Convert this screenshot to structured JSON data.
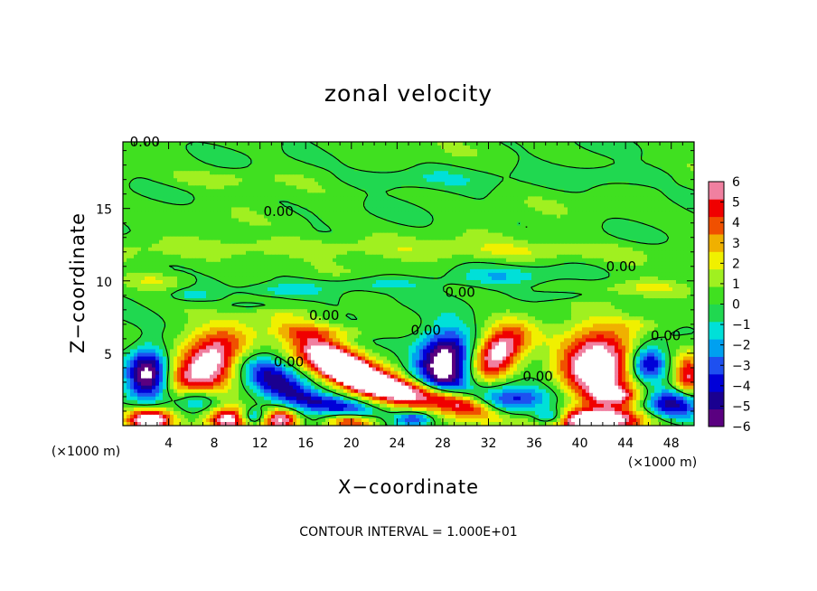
{
  "chart_data": {
    "type": "heatmap",
    "title": "zonal velocity",
    "xlabel": "X−coordinate",
    "ylabel": "Z−coordinate",
    "x_unit_left": "(×1000 m)",
    "x_unit_right": "(×1000 m)",
    "footer": "CONTOUR INTERVAL = 1.000E+01",
    "xlim": [
      0,
      50
    ],
    "ylim": [
      0,
      19.6
    ],
    "x_ticks": [
      4,
      8,
      12,
      16,
      20,
      24,
      28,
      32,
      36,
      40,
      44,
      48
    ],
    "x_tick_labels": [
      "4",
      "8",
      "12",
      "16",
      "20",
      "24",
      "28",
      "32",
      "36",
      "40",
      "44",
      "48"
    ],
    "y_ticks": [
      5,
      10,
      15
    ],
    "y_tick_labels": [
      "5",
      "10",
      "15"
    ],
    "colorbar": {
      "min": -6,
      "max": 6,
      "tick_values": [
        6,
        5,
        4,
        3,
        2,
        1,
        0,
        -1,
        -2,
        -3,
        -4,
        -5,
        -6
      ],
      "tick_labels": [
        "6",
        "5",
        "4",
        "3",
        "2",
        "1",
        "0",
        "−1",
        "−2",
        "−3",
        "−4",
        "−5",
        "−6"
      ],
      "colors": [
        "#5a0080",
        "#1a0090",
        "#0000d8",
        "#1e50f0",
        "#00a0f0",
        "#00e0d8",
        "#20d850",
        "#40e020",
        "#a0f020",
        "#f0f000",
        "#f0b000",
        "#f05000",
        "#f00000",
        "#f080a0"
      ]
    },
    "contour_label": "0.00",
    "contour_labels": [
      {
        "x": 0.6,
        "y": 19.6
      },
      {
        "x": 12.3,
        "y": 14.8
      },
      {
        "x": 42.3,
        "y": 11.0
      },
      {
        "x": 28.2,
        "y": 9.2
      },
      {
        "x": 16.3,
        "y": 7.6
      },
      {
        "x": 25.2,
        "y": 6.6
      },
      {
        "x": 46.2,
        "y": 6.2
      },
      {
        "x": 13.2,
        "y": 4.4
      },
      {
        "x": 35.0,
        "y": 3.4
      }
    ],
    "features": [
      {
        "kind": "pos",
        "x": 7.5,
        "y": 4.2,
        "rx": 3.6,
        "ry": 2.0,
        "amp": 7.5,
        "rot": 25
      },
      {
        "kind": "pos",
        "x": 18.5,
        "y": 4.5,
        "rx": 4.5,
        "ry": 1.3,
        "amp": 7.0,
        "rot": -25
      },
      {
        "kind": "pos",
        "x": 22.5,
        "y": 2.8,
        "rx": 5.5,
        "ry": 0.9,
        "amp": 7.0,
        "rot": -15
      },
      {
        "kind": "pos",
        "x": 29.0,
        "y": 1.7,
        "rx": 4.0,
        "ry": 0.8,
        "amp": 5.5,
        "rot": -15
      },
      {
        "kind": "pos",
        "x": 32.8,
        "y": 5.0,
        "rx": 2.6,
        "ry": 1.5,
        "amp": 7.0,
        "rot": 25
      },
      {
        "kind": "pos",
        "x": 41.5,
        "y": 4.3,
        "rx": 3.2,
        "ry": 2.3,
        "amp": 8.0,
        "rot": 0
      },
      {
        "kind": "pos",
        "x": 43.0,
        "y": 2.0,
        "rx": 2.5,
        "ry": 0.7,
        "amp": 4.0,
        "rot": 0
      },
      {
        "kind": "pos",
        "x": 2.3,
        "y": 0.4,
        "rx": 2.0,
        "ry": 0.8,
        "amp": 7.0,
        "rot": 0
      },
      {
        "kind": "pos",
        "x": 9.2,
        "y": 0.4,
        "rx": 1.8,
        "ry": 0.8,
        "amp": 6.0,
        "rot": 0
      },
      {
        "kind": "pos",
        "x": 13.8,
        "y": 0.4,
        "rx": 1.8,
        "ry": 0.8,
        "amp": 6.5,
        "rot": 0
      },
      {
        "kind": "pos",
        "x": 20.0,
        "y": 0.3,
        "rx": 2.5,
        "ry": 0.6,
        "amp": 5.0,
        "rot": 0
      },
      {
        "kind": "pos",
        "x": 41.5,
        "y": 0.4,
        "rx": 4.0,
        "ry": 0.8,
        "amp": 8.0,
        "rot": 0
      },
      {
        "kind": "pos",
        "x": 49.5,
        "y": 3.5,
        "rx": 1.2,
        "ry": 1.5,
        "amp": 4.5,
        "rot": 0
      },
      {
        "kind": "neg",
        "x": 2.2,
        "y": 3.6,
        "rx": 1.8,
        "ry": 1.8,
        "amp": -7.0,
        "rot": 0
      },
      {
        "kind": "neg",
        "x": 13.5,
        "y": 3.0,
        "rx": 4.0,
        "ry": 1.3,
        "amp": -5.5,
        "rot": -25
      },
      {
        "kind": "neg",
        "x": 19.0,
        "y": 1.3,
        "rx": 3.5,
        "ry": 0.7,
        "amp": -4.5,
        "rot": -10
      },
      {
        "kind": "neg",
        "x": 28.2,
        "y": 4.3,
        "rx": 2.5,
        "ry": 2.2,
        "amp": -8.0,
        "rot": 20
      },
      {
        "kind": "neg",
        "x": 34.5,
        "y": 1.8,
        "rx": 3.0,
        "ry": 1.0,
        "amp": -4.0,
        "rot": 0
      },
      {
        "kind": "neg",
        "x": 46.0,
        "y": 4.3,
        "rx": 1.6,
        "ry": 1.3,
        "amp": -5.5,
        "rot": 0
      },
      {
        "kind": "neg",
        "x": 48.0,
        "y": 1.5,
        "rx": 2.5,
        "ry": 1.0,
        "amp": -5.0,
        "rot": 0
      },
      {
        "kind": "neg",
        "x": 6.5,
        "y": 1.8,
        "rx": 2.0,
        "ry": 0.9,
        "amp": -4.0,
        "rot": 0
      },
      {
        "kind": "neg",
        "x": 11.5,
        "y": 0.6,
        "rx": 1.2,
        "ry": 0.6,
        "amp": -4.0,
        "rot": 0
      },
      {
        "kind": "neg",
        "x": 37.5,
        "y": 0.6,
        "rx": 1.5,
        "ry": 0.6,
        "amp": -4.5,
        "rot": 0
      },
      {
        "kind": "neg",
        "x": 25.5,
        "y": 0.5,
        "rx": 1.5,
        "ry": 0.5,
        "amp": -3.5,
        "rot": 0
      },
      {
        "kind": "weak",
        "x": 14.0,
        "y": 9.3,
        "rx": 3.5,
        "ry": 0.5,
        "amp": -1.8,
        "rot": 0
      },
      {
        "kind": "weak",
        "x": 22.0,
        "y": 9.8,
        "rx": 5.0,
        "ry": 0.5,
        "amp": -1.5,
        "rot": 0
      },
      {
        "kind": "weak",
        "x": 33.0,
        "y": 10.3,
        "rx": 5.0,
        "ry": 0.6,
        "amp": -1.6,
        "rot": 0
      },
      {
        "kind": "weak",
        "x": 6.0,
        "y": 9.0,
        "rx": 2.0,
        "ry": 0.4,
        "amp": -1.5,
        "rot": 0
      },
      {
        "kind": "weak",
        "x": 12.0,
        "y": 8.3,
        "rx": 3.0,
        "ry": 0.4,
        "amp": -1.5,
        "rot": 0
      },
      {
        "kind": "weak",
        "x": 39.0,
        "y": 9.0,
        "rx": 3.0,
        "ry": 0.4,
        "amp": -1.4,
        "rot": 0
      },
      {
        "kind": "weak",
        "x": 25.0,
        "y": 17.0,
        "rx": 6.0,
        "ry": 0.7,
        "amp": -1.2,
        "rot": 0
      },
      {
        "kind": "weak",
        "x": 43.0,
        "y": 17.3,
        "rx": 5.0,
        "ry": 0.7,
        "amp": -1.4,
        "rot": 0
      },
      {
        "kind": "weak",
        "x": 14.0,
        "y": 12.3,
        "rx": 12.0,
        "ry": 0.7,
        "amp": 1.5,
        "rot": 0
      },
      {
        "kind": "weak",
        "x": 36.0,
        "y": 12.0,
        "rx": 10.0,
        "ry": 0.7,
        "amp": 1.3,
        "rot": 0
      },
      {
        "kind": "weak",
        "x": 3.0,
        "y": 10.0,
        "rx": 3.0,
        "ry": 0.6,
        "amp": 1.8,
        "rot": 0
      },
      {
        "kind": "weak",
        "x": 46.0,
        "y": 9.5,
        "rx": 4.0,
        "ry": 0.5,
        "amp": 1.4,
        "rot": 0
      },
      {
        "kind": "weak",
        "x": 18.0,
        "y": 6.5,
        "rx": 5.0,
        "ry": 0.5,
        "amp": 1.6,
        "rot": 0
      },
      {
        "kind": "weak",
        "x": 45.5,
        "y": 7.0,
        "rx": 3.0,
        "ry": 0.6,
        "amp": 1.5,
        "rot": 0
      },
      {
        "kind": "weak",
        "x": 8.0,
        "y": 17.0,
        "rx": 5.0,
        "ry": 0.6,
        "amp": 1.0,
        "rot": 0
      }
    ]
  }
}
